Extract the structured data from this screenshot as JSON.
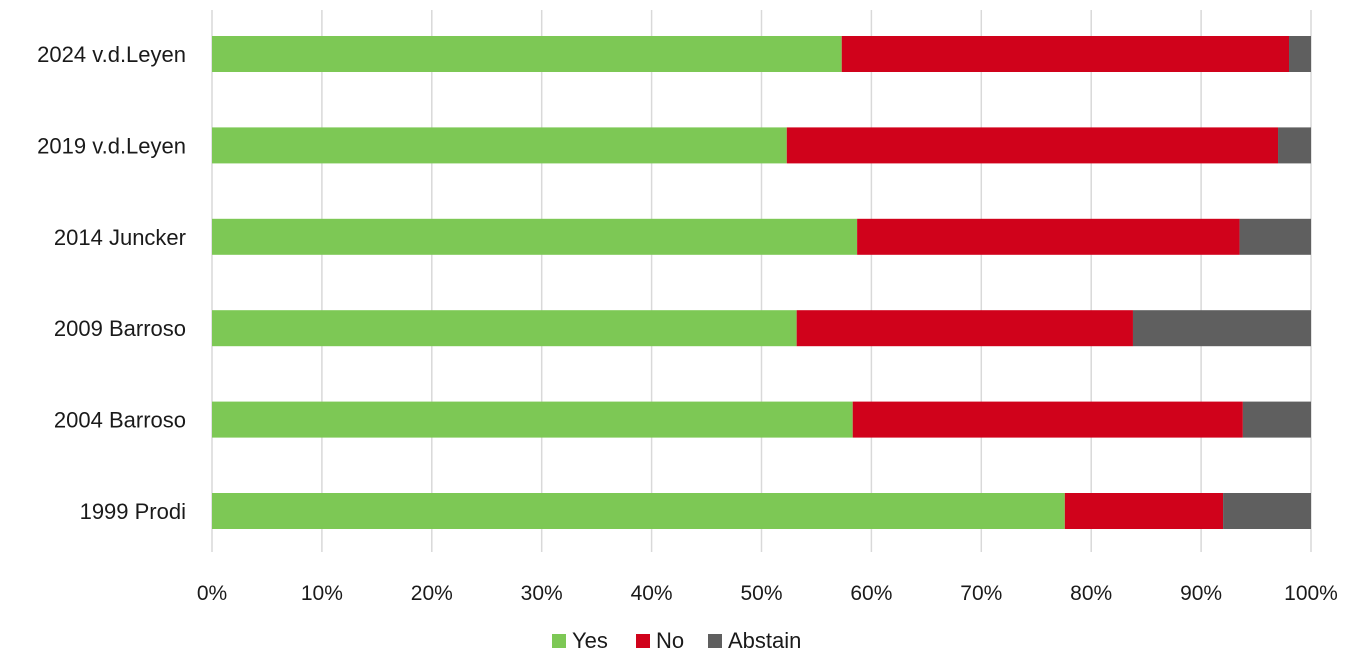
{
  "chart_data": {
    "type": "bar",
    "orientation": "horizontal",
    "stacked": "percent",
    "categories": [
      "2024 v.d.Leyen",
      "2019 v.d.Leyen",
      "2014 Juncker",
      "2009 Barroso",
      "2004 Barroso",
      "1999 Prodi"
    ],
    "series": [
      {
        "name": "Yes",
        "color": "#7dc855",
        "values": [
          57.3,
          52.3,
          58.7,
          53.2,
          58.3,
          77.6
        ]
      },
      {
        "name": "No",
        "color": "#d0021b",
        "values": [
          40.7,
          44.7,
          34.8,
          30.6,
          35.5,
          14.4
        ]
      },
      {
        "name": "Abstain",
        "color": "#5f5f5f",
        "values": [
          2.0,
          3.0,
          6.5,
          16.2,
          6.2,
          8.0
        ]
      }
    ],
    "xlim": [
      0,
      100
    ],
    "x_ticks": [
      "0%",
      "10%",
      "20%",
      "30%",
      "40%",
      "50%",
      "60%",
      "70%",
      "80%",
      "90%",
      "100%"
    ],
    "grid": "vertical",
    "legend_position": "bottom",
    "title": "",
    "xlabel": "",
    "ylabel": ""
  }
}
